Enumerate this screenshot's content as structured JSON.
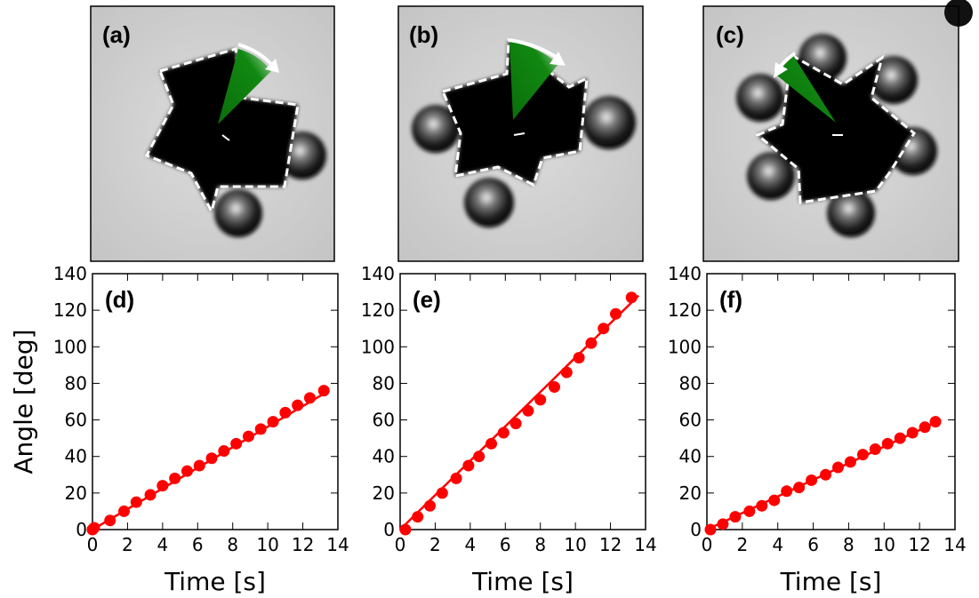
{
  "images": [
    {
      "label": "(a)"
    },
    {
      "label": "(b)"
    },
    {
      "label": "(c)"
    }
  ],
  "chart_data": [
    {
      "type": "scatter",
      "panel_label": "(d)",
      "xlabel": "Time [s]",
      "ylabel": "Angle [deg]",
      "xlim": [
        0,
        14
      ],
      "ylim": [
        0,
        140
      ],
      "xticks": [
        0,
        2,
        4,
        6,
        8,
        10,
        12,
        14
      ],
      "yticks": [
        0,
        20,
        40,
        60,
        80,
        100,
        120,
        140
      ],
      "marker_color": "#ff0000",
      "fit_line": {
        "x": [
          0,
          13.5
        ],
        "y": [
          0,
          76
        ]
      },
      "x": [
        0.0,
        0.1,
        1.0,
        1.8,
        2.5,
        3.3,
        4.0,
        4.7,
        5.4,
        6.1,
        6.8,
        7.5,
        8.2,
        8.9,
        9.6,
        10.3,
        11.0,
        11.7,
        12.4,
        13.2
      ],
      "y": [
        0,
        1,
        5,
        10,
        15,
        19,
        24,
        28,
        32,
        35,
        39,
        43,
        47,
        51,
        55,
        59,
        64,
        68,
        72,
        76
      ]
    },
    {
      "type": "scatter",
      "panel_label": "(e)",
      "xlabel": "Time [s]",
      "ylabel": "",
      "xlim": [
        0,
        14
      ],
      "ylim": [
        0,
        140
      ],
      "xticks": [
        0,
        2,
        4,
        6,
        8,
        10,
        12,
        14
      ],
      "yticks": [
        0,
        20,
        40,
        60,
        80,
        100,
        120,
        140
      ],
      "marker_color": "#ff0000",
      "fit_line": {
        "x": [
          0,
          13.6
        ],
        "y": [
          0,
          128
        ]
      },
      "x": [
        0.3,
        1.0,
        1.7,
        2.4,
        3.2,
        3.9,
        4.5,
        5.2,
        5.9,
        6.6,
        7.3,
        8.0,
        8.8,
        9.5,
        10.2,
        10.9,
        11.6,
        12.3,
        13.2
      ],
      "y": [
        0,
        7,
        13,
        20,
        28,
        35,
        40,
        47,
        53,
        58,
        65,
        71,
        78,
        86,
        94,
        102,
        110,
        118,
        127
      ]
    },
    {
      "type": "scatter",
      "panel_label": "(f)",
      "xlabel": "Time [s]",
      "ylabel": "",
      "xlim": [
        0,
        14
      ],
      "ylim": [
        0,
        140
      ],
      "xticks": [
        0,
        2,
        4,
        6,
        8,
        10,
        12,
        14
      ],
      "yticks": [
        0,
        20,
        40,
        60,
        80,
        100,
        120,
        140
      ],
      "marker_color": "#ff0000",
      "fit_line": {
        "x": [
          0,
          13.0
        ],
        "y": [
          0,
          59
        ]
      },
      "x": [
        0.2,
        0.9,
        1.6,
        2.4,
        3.1,
        3.8,
        4.5,
        5.2,
        5.9,
        6.7,
        7.4,
        8.1,
        8.8,
        9.5,
        10.2,
        10.9,
        11.6,
        12.3,
        12.9
      ],
      "y": [
        0,
        3,
        7,
        10,
        13,
        16,
        21,
        23,
        27,
        30,
        34,
        37,
        41,
        44,
        47,
        50,
        53,
        56,
        59
      ]
    }
  ]
}
